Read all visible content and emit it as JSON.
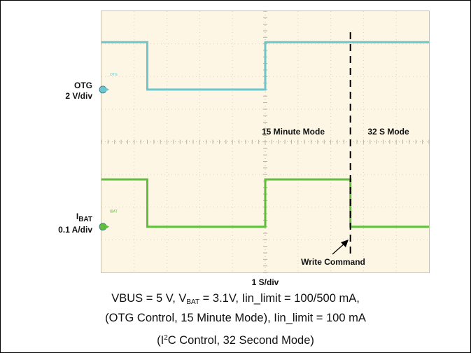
{
  "chart_data": {
    "type": "line",
    "timebase": "1 S/div",
    "channels": [
      {
        "label_main": "OTG",
        "label_sub": "",
        "scale": "2 V/div",
        "marker": "OTG",
        "color": "#6cc6cc",
        "transitions": [
          {
            "t_div": 0.0,
            "level_div": 1.0
          },
          {
            "t_div": 1.4,
            "level_div": 0.0
          },
          {
            "t_div": 5.0,
            "level_div": 1.0
          },
          {
            "t_div": 10.0,
            "level_div": 1.0
          }
        ]
      },
      {
        "label_main": "I",
        "label_sub": "BAT",
        "scale": "0.1 A/div",
        "marker": "IBAT",
        "color": "#5fbe3a",
        "transitions": [
          {
            "t_div": 0.0,
            "level_div": 1.0
          },
          {
            "t_div": 1.4,
            "level_div": 0.0
          },
          {
            "t_div": 5.0,
            "level_div": 1.0
          },
          {
            "t_div": 7.6,
            "level_div": 0.0
          },
          {
            "t_div": 10.0,
            "level_div": 0.0
          }
        ]
      }
    ],
    "annotations": {
      "mode_left": "15 Minute Mode",
      "mode_right": "32 S Mode",
      "event": "Write Command",
      "event_t_div": 7.6
    }
  },
  "caption": {
    "line1_pre": "VBUS = 5 V, V",
    "line1_sub": "BAT",
    "line1_post": " = 3.1V, Iin_limit = 100/500 mA,",
    "line2": "(OTG Control, 15 Minute Mode), Iin_limit = 100 mA",
    "line3_pre": "(I",
    "line3_sup": "2",
    "line3_post": "C Control, 32 Second Mode)"
  }
}
